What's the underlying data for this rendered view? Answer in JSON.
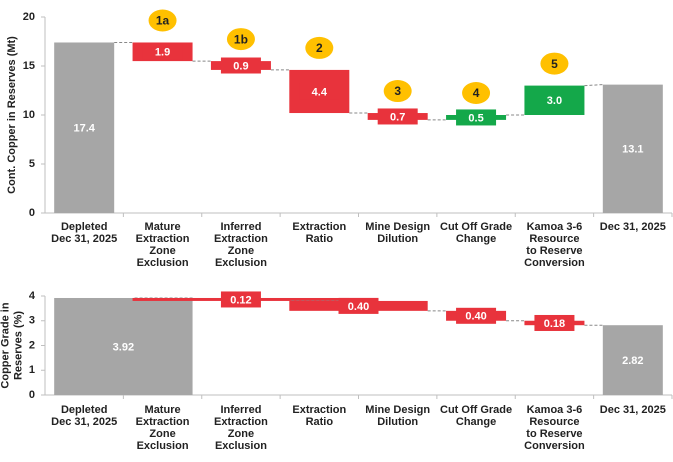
{
  "chart_data": [
    {
      "type": "waterfall",
      "y_label": [
        "Cont. Copper in Reserves (Mt)"
      ],
      "categories": [
        [
          "Depleted",
          "Dec 31, 2025"
        ],
        [
          "Mature",
          "Extraction",
          "Zone",
          "Exclusion"
        ],
        [
          "Inferred",
          "Extraction",
          "Zone",
          "Exclusion"
        ],
        [
          "Extraction",
          "Ratio"
        ],
        [
          "Mine Design",
          "Dilution"
        ],
        [
          "Cut Off Grade",
          "Change"
        ],
        [
          "Kamoa 3-6",
          "Resource",
          "to Reserve",
          "Conversion"
        ],
        [
          "Dec 31, 2025"
        ]
      ],
      "values": [
        17.4,
        1.9,
        0.9,
        4.4,
        0.7,
        0.5,
        3.0,
        13.1
      ],
      "value_labels": [
        "17.4",
        "1.9",
        "0.9",
        "4.4",
        "0.7",
        "0.5",
        "3.0",
        "13.1"
      ],
      "measure": [
        "total",
        "decrease",
        "decrease",
        "decrease",
        "decrease",
        "increase",
        "increase",
        "total"
      ],
      "badges": [
        null,
        "1a",
        "1b",
        "2",
        "3",
        "4",
        "5",
        null
      ],
      "colors": {
        "total": "#a6a6a6",
        "decrease": "#e8333c",
        "increase": "#14a84a",
        "badge": "#ffc000"
      },
      "ylim": [
        0,
        20
      ],
      "yticks": [
        0,
        5,
        10,
        15,
        20
      ]
    },
    {
      "type": "waterfall",
      "y_label": [
        "Copper Grade in",
        "Reserves (%)"
      ],
      "categories": [
        [
          "Depleted",
          "Dec 31, 2025"
        ],
        [
          "Mature",
          "Extraction",
          "Zone",
          "Exclusion"
        ],
        [
          "Inferred",
          "Extraction",
          "Zone",
          "Exclusion"
        ],
        [
          "Extraction",
          "Ratio"
        ],
        [
          "Mine Design",
          "Dilution"
        ],
        [
          "Cut Off Grade",
          "Change"
        ],
        [
          "Kamoa 3-6",
          "Resource",
          "to Reserve",
          "Conversion"
        ],
        [
          "Dec 31, 2025"
        ]
      ],
      "values": [
        3.92,
        null,
        0.12,
        null,
        0.4,
        0.4,
        0.18,
        2.82
      ],
      "value_labels": [
        "3.92",
        null,
        "0.12",
        null,
        "0.40",
        "0.40",
        "0.18",
        "2.82"
      ],
      "measure": [
        "total",
        null,
        "decrease",
        null,
        "decrease",
        "decrease",
        "decrease",
        "total"
      ],
      "colors": {
        "total": "#a6a6a6",
        "decrease": "#e8333c",
        "increase": "#14a84a"
      },
      "ylim": [
        0,
        4
      ],
      "yticks": [
        0,
        1,
        2,
        3,
        4
      ]
    }
  ]
}
